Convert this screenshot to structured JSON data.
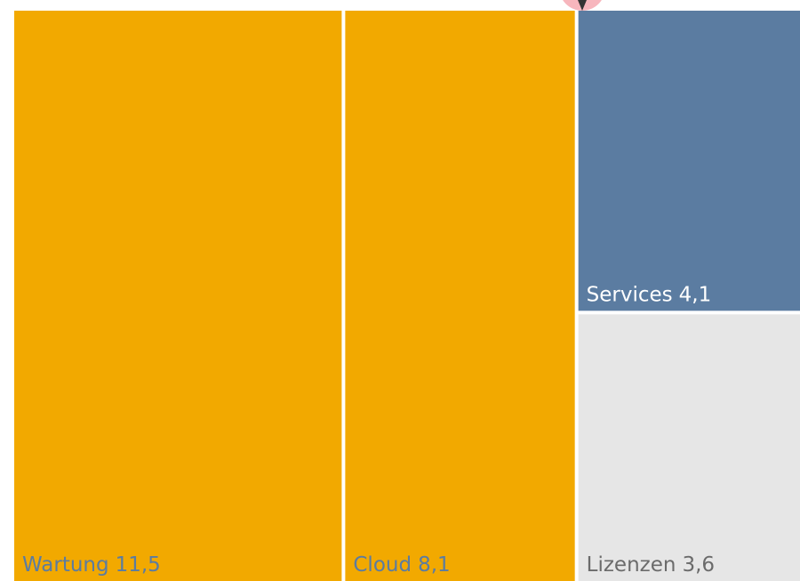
{
  "chart_data": {
    "type": "treemap",
    "categories": [
      "Wartung",
      "Cloud",
      "Services",
      "Lizenzen"
    ],
    "values": [
      11.5,
      8.1,
      4.1,
      3.6
    ],
    "value_labels": [
      "11,5",
      "8,1",
      "4,1",
      "3,6"
    ],
    "colors": [
      "#f2a900",
      "#f2a900",
      "#5b7ca1",
      "#e6e6e6"
    ]
  }
}
